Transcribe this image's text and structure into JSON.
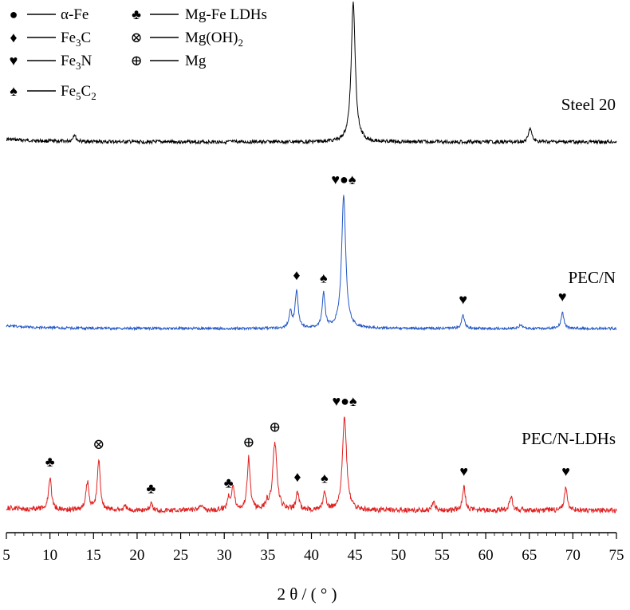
{
  "chart_data": {
    "type": "line",
    "title": "",
    "xlabel": "2 θ / ( ° )",
    "ylabel": "",
    "xlim": [
      5,
      75
    ],
    "xticks": [
      "5",
      "10",
      "15",
      "20",
      "25",
      "30",
      "35",
      "40",
      "45",
      "50",
      "55",
      "60",
      "65",
      "70",
      "75"
    ],
    "grid": false,
    "legend_position": "top-left",
    "legend": [
      {
        "symbol": "●",
        "label": "α-Fe"
      },
      {
        "symbol": "♦",
        "label": "Fe",
        "sub": "3",
        "label2": "C"
      },
      {
        "symbol": "♥",
        "label": "Fe",
        "sub": "3",
        "label2": "N"
      },
      {
        "symbol": "♠",
        "label": "Fe",
        "sub": "5",
        "label2": "C",
        "sub2": "2"
      },
      {
        "symbol": "♣",
        "label": "Mg-Fe LDHs"
      },
      {
        "symbol": "⊗",
        "label": "Mg(OH)",
        "sub": "2"
      },
      {
        "symbol": "⊕",
        "label": "Mg"
      }
    ],
    "series": [
      {
        "name": "Steel 20",
        "color": "#000000",
        "peaks": [
          [
            12.8,
            0.05
          ],
          [
            44.8,
            1.0
          ],
          [
            65.1,
            0.1
          ]
        ],
        "markers": []
      },
      {
        "name": "PEC/N",
        "color": "#2458c6",
        "peaks": [
          [
            37.6,
            0.12
          ],
          [
            38.3,
            0.28
          ],
          [
            41.4,
            0.26
          ],
          [
            43.7,
            1.0
          ],
          [
            57.4,
            0.1
          ],
          [
            64.0,
            0.03
          ],
          [
            68.8,
            0.12
          ]
        ],
        "markers": [
          {
            "x": 38.3,
            "symbols": "♦"
          },
          {
            "x": 41.4,
            "symbols": "♠"
          },
          {
            "x": 43.7,
            "symbols": "♥●♠"
          },
          {
            "x": 57.4,
            "symbols": "♥"
          },
          {
            "x": 68.8,
            "symbols": "♥"
          }
        ]
      },
      {
        "name": "PEC/N-LDHs",
        "color": "#e02020",
        "peaks": [
          [
            10.0,
            0.28
          ],
          [
            14.3,
            0.24
          ],
          [
            15.6,
            0.43
          ],
          [
            18.6,
            0.03
          ],
          [
            21.6,
            0.05
          ],
          [
            27.3,
            0.05
          ],
          [
            30.5,
            0.1
          ],
          [
            31.0,
            0.2
          ],
          [
            32.8,
            0.45
          ],
          [
            34.9,
            0.05
          ],
          [
            35.8,
            0.58
          ],
          [
            38.4,
            0.15
          ],
          [
            41.5,
            0.14
          ],
          [
            43.8,
            0.8
          ],
          [
            54.0,
            0.07
          ],
          [
            57.5,
            0.2
          ],
          [
            62.9,
            0.12
          ],
          [
            69.2,
            0.2
          ]
        ],
        "markers": [
          {
            "x": 10.0,
            "symbols": "♣"
          },
          {
            "x": 15.6,
            "symbols": "⊗"
          },
          {
            "x": 21.6,
            "symbols": "♣"
          },
          {
            "x": 30.5,
            "symbols": "♣"
          },
          {
            "x": 32.8,
            "symbols": "⊕"
          },
          {
            "x": 35.8,
            "symbols": "⊕"
          },
          {
            "x": 38.4,
            "symbols": "♦"
          },
          {
            "x": 41.5,
            "symbols": "♠"
          },
          {
            "x": 43.8,
            "symbols": "♥●♠"
          },
          {
            "x": 57.5,
            "symbols": "♥"
          },
          {
            "x": 69.2,
            "symbols": "♥"
          }
        ]
      }
    ]
  }
}
